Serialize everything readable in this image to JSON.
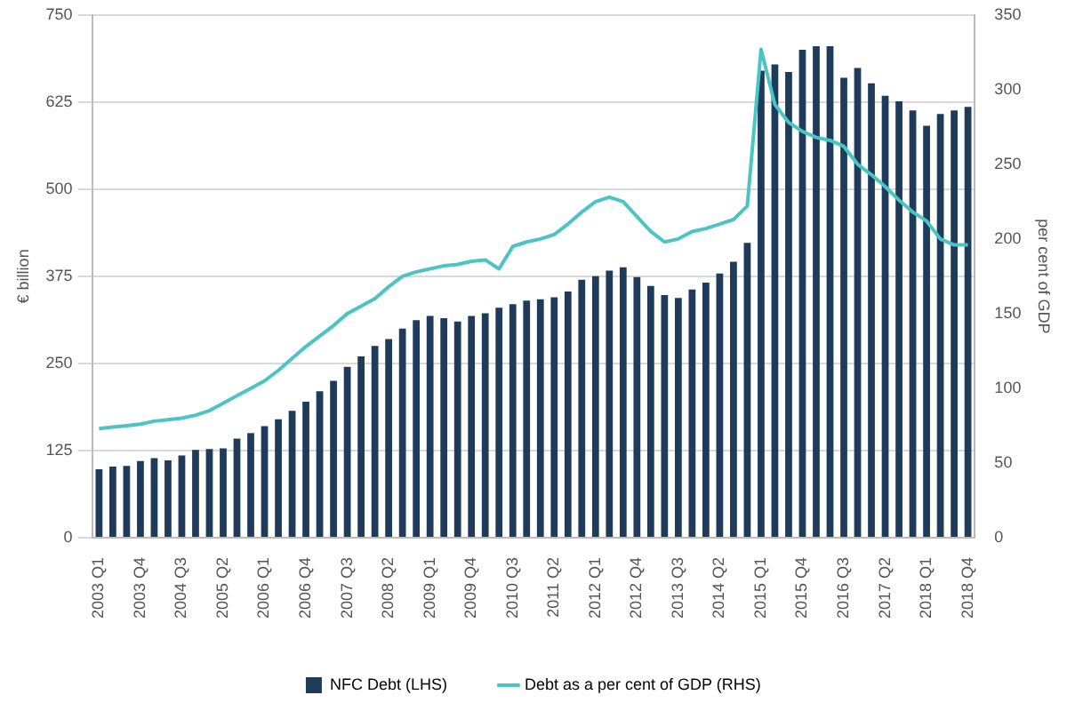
{
  "chart_data": {
    "type": "bar",
    "categories": [
      "2003 Q1",
      null,
      null,
      "2003 Q4",
      null,
      null,
      "2004 Q3",
      null,
      null,
      "2005 Q2",
      null,
      null,
      "2006 Q1",
      null,
      null,
      "2006 Q4",
      null,
      null,
      "2007 Q3",
      null,
      null,
      "2008 Q2",
      null,
      null,
      "2009 Q1",
      null,
      null,
      "2009 Q4",
      null,
      null,
      "2010 Q3",
      null,
      null,
      "2011 Q2",
      null,
      null,
      "2012 Q1",
      null,
      null,
      "2012 Q4",
      null,
      null,
      "2013 Q3",
      null,
      null,
      "2014 Q2",
      null,
      null,
      "2015 Q1",
      null,
      null,
      "2015 Q4",
      null,
      null,
      "2016 Q3",
      null,
      null,
      "2017 Q2",
      null,
      null,
      "2018 Q1",
      null,
      null,
      "2018 Q4"
    ],
    "series": [
      {
        "name": "NFC Debt (LHS)",
        "color": "#1f3b5a",
        "values": [
          98,
          102,
          103,
          110,
          114,
          111,
          118,
          126,
          127,
          128,
          142,
          150,
          160,
          170,
          182,
          195,
          210,
          225,
          245,
          260,
          275,
          285,
          300,
          312,
          318,
          315,
          310,
          318,
          322,
          330,
          335,
          340,
          342,
          345,
          353,
          370,
          375,
          383,
          388,
          374,
          361,
          348,
          344,
          356,
          366,
          379,
          396,
          423,
          670,
          679,
          668,
          700,
          705,
          705,
          660,
          674,
          652,
          634,
          626,
          613,
          591,
          608,
          613,
          618
        ]
      },
      {
        "name": "Debt as a per cent of GDP (RHS)",
        "type": "line",
        "axis": "y2",
        "color": "#4bc4c4",
        "values": [
          73,
          74,
          75,
          76,
          78,
          79,
          80,
          82,
          85,
          90,
          95,
          100,
          105,
          112,
          120,
          128,
          135,
          142,
          150,
          155,
          160,
          168,
          175,
          178,
          180,
          182,
          183,
          185,
          186,
          180,
          195,
          198,
          200,
          203,
          210,
          218,
          225,
          228,
          225,
          215,
          205,
          198,
          200,
          205,
          207,
          210,
          213,
          222,
          327,
          290,
          278,
          272,
          268,
          266,
          262,
          250,
          243,
          235,
          226,
          218,
          212,
          200,
          196,
          196
        ]
      }
    ],
    "ylabel": "€ billion",
    "y2label": "per cent of GDP",
    "ylim": [
      0,
      750
    ],
    "yticks": [
      0,
      125,
      250,
      375,
      500,
      625,
      750
    ],
    "y2lim": [
      0,
      350
    ],
    "y2ticks": [
      0,
      50,
      100,
      150,
      200,
      250,
      300,
      350
    ],
    "grid": "y",
    "legend": "bottom",
    "marker": "none"
  }
}
